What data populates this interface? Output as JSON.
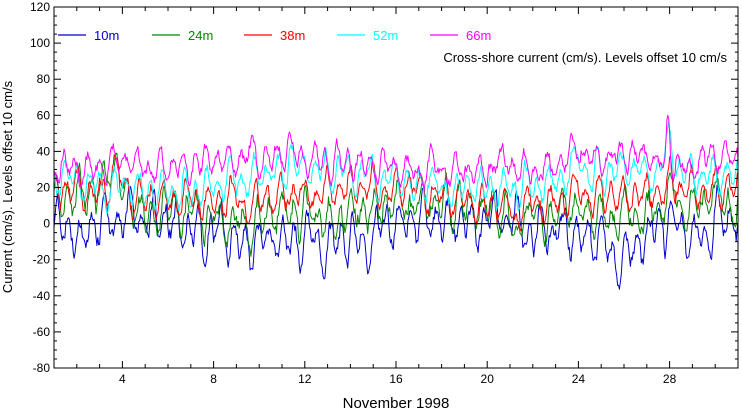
{
  "chart_data": {
    "type": "line",
    "annotation": "Cross-shore current (cm/s). Levels offset 10 cm/s",
    "xlabel": "November 1998",
    "ylabel": "Current (cm/s). Levels offset 10 cm/s",
    "xlim": [
      1,
      31
    ],
    "ylim": [
      -80,
      120
    ],
    "x_ticks": [
      4,
      8,
      12,
      16,
      20,
      24,
      28
    ],
    "y_ticks": [
      -80,
      -60,
      -40,
      -20,
      0,
      20,
      40,
      60,
      80,
      100,
      120
    ],
    "grid": false,
    "legend_position": "top-left",
    "zero_line": true,
    "series": [
      {
        "name": "10m",
        "color": "#0000cc",
        "level_offset": 0,
        "mean": -2,
        "tidal_amp": 9,
        "noise": 4,
        "events": [
          [
            2.3,
            -16,
            0.2
          ],
          [
            4.2,
            6,
            0.3
          ],
          [
            9.3,
            -8,
            0.4
          ],
          [
            13.0,
            -9,
            0.5
          ],
          [
            14.8,
            -12,
            0.3
          ],
          [
            21.2,
            5,
            0.3
          ],
          [
            25.8,
            -10,
            0.6
          ],
          [
            28.1,
            6,
            0.2
          ],
          [
            30.0,
            5,
            0.4
          ]
        ]
      },
      {
        "name": "24m",
        "color": "#008800",
        "level_offset": 10,
        "mean": 8,
        "tidal_amp": 8,
        "noise": 4,
        "events": [
          [
            3.6,
            18,
            0.3
          ],
          [
            9.5,
            -8,
            0.4
          ],
          [
            13.1,
            -6,
            0.4
          ],
          [
            21.2,
            -12,
            0.15
          ],
          [
            23.9,
            8,
            0.5
          ],
          [
            28.2,
            10,
            0.3
          ]
        ]
      },
      {
        "name": "38m",
        "color": "#ff0000",
        "level_offset": 20,
        "mean": 16,
        "tidal_amp": 7,
        "noise": 3,
        "events": [
          [
            3.7,
            12,
            0.3
          ],
          [
            9.7,
            -6,
            0.4
          ],
          [
            21.2,
            -10,
            0.2
          ],
          [
            24.0,
            10,
            0.4
          ],
          [
            28.1,
            14,
            0.2
          ]
        ]
      },
      {
        "name": "52m",
        "color": "#00ffff",
        "level_offset": 30,
        "mean": 24,
        "tidal_amp": 7,
        "noise": 3,
        "events": [
          [
            11.4,
            14,
            0.2
          ],
          [
            24.0,
            14,
            0.2
          ],
          [
            28.0,
            22,
            0.2
          ]
        ]
      },
      {
        "name": "66m",
        "color": "#ff00ff",
        "level_offset": 40,
        "mean": 33,
        "tidal_amp": 6,
        "noise": 3,
        "events": [
          [
            4.0,
            8,
            0.3
          ],
          [
            11.3,
            12,
            0.2
          ],
          [
            24.0,
            8,
            0.3
          ],
          [
            27.95,
            26,
            0.12
          ],
          [
            30.3,
            4,
            0.4
          ]
        ]
      }
    ]
  }
}
